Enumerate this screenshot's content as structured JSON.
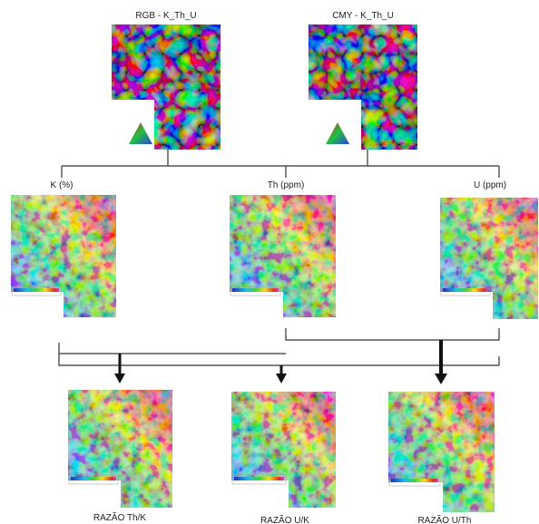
{
  "top_maps": [
    {
      "label": "RGB - K_Th_U"
    },
    {
      "label": "CMY - K_Th_U"
    }
  ],
  "channel_maps": [
    {
      "label": "K (%)"
    },
    {
      "label": "Th (ppm)"
    },
    {
      "label": "U (ppm)"
    }
  ],
  "ratio_maps": [
    {
      "label": "RAZÃO Th/K"
    },
    {
      "label": "RAZÃO U/K"
    },
    {
      "label": "RAZÃO U/Th"
    }
  ]
}
